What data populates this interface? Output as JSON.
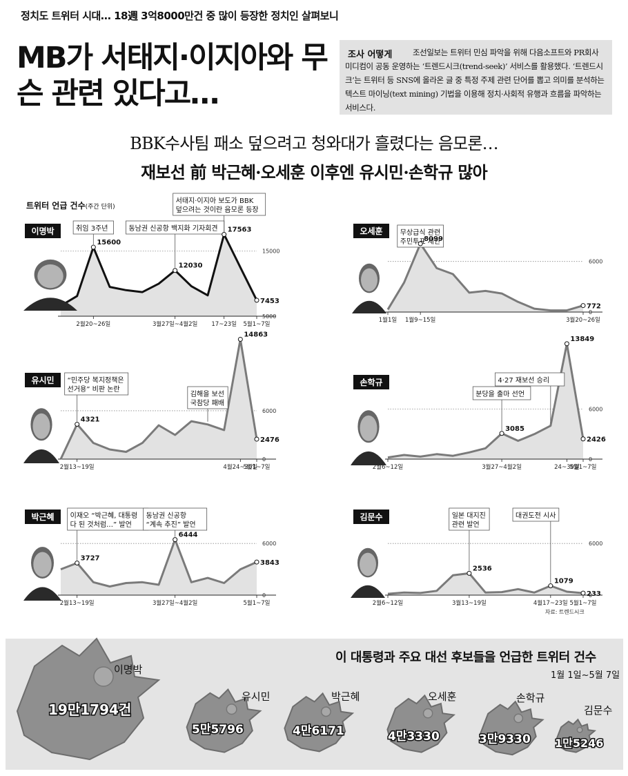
{
  "header": {
    "kicker": "정치도 트위터 시대… 18週 3억8000만건 중 많이 등장한 정치인 살펴보니",
    "headline": "MB가 서태지·이지아와 무슨 관련 있다고…",
    "survey_tag": "조사 어떻게",
    "survey_text": "조선일보는 트위터 민심 파악을 위해 다음소프트와 PR회사 미디컴이 공동 운영하는 ‘트렌드시크(trend-seek)’ 서비스를 활용했다. ‘트렌드시크’는 트위터 등 SNS에 올라온 글 중 특정 주제 관련 단어를 뽑고 의미를 분석하는 텍스트 마이닝(text mining) 기법을 이용해 정치·사회적 유행과 흐름을 파악하는 서비스다.",
    "subheadline_1": "BBK수사팀 패소 덮으려고 청와대가 흘렸다는 음모론…",
    "subheadline_2": "재보선 前 박근혜·오세훈 이후엔 유시민·손학규 많아"
  },
  "charts_title": "트위터 언급 건수",
  "charts_unit": "(주간 단위)",
  "source": "자료: 트렌드시크",
  "chart_data": [
    {
      "type": "area",
      "name": "이명박",
      "values": [
        6600,
        8100,
        15600,
        9500,
        9000,
        8700,
        10000,
        12030,
        9600,
        8200,
        17563,
        12500,
        7453
      ],
      "labeled": {
        "2": "15600",
        "7": "12030",
        "10": "17563",
        "12": "7453"
      },
      "x_ticks": [
        {
          "i": 2,
          "label": "2월20~26일"
        },
        {
          "i": 7,
          "label": "3월27일~4월2일"
        },
        {
          "i": 10,
          "label": "17~23일"
        },
        {
          "i": 12,
          "label": "5월1~7일"
        }
      ],
      "y_ticks": [
        {
          "v": 15000,
          "label": "15000"
        },
        {
          "v": 5000,
          "label": "5000"
        }
      ],
      "ylim": [
        5000,
        19000
      ],
      "annotations": [
        {
          "i": 2,
          "lines": [
            "취임 3주년"
          ]
        },
        {
          "i": 7,
          "lines": [
            "동남권 신공항 백지화 기자회견"
          ]
        },
        {
          "i": 10,
          "lines": [
            "서태지·이지아 보도가 BBK",
            "덮으려는 것이란 음모론 등장"
          ]
        }
      ]
    },
    {
      "type": "area",
      "name": "오세훈",
      "values": [
        300,
        3500,
        8099,
        5200,
        4500,
        2300,
        2500,
        2200,
        1200,
        400,
        200,
        200,
        772
      ],
      "labeled": {
        "2": "8099",
        "12": "772"
      },
      "x_ticks": [
        {
          "i": 0,
          "label": "1월1일"
        },
        {
          "i": 2,
          "label": "1월9~15일"
        },
        {
          "i": 12,
          "label": "3월20~26일"
        }
      ],
      "y_ticks": [
        {
          "v": 6000,
          "label": "6000"
        },
        {
          "v": 0,
          "label": "0"
        }
      ],
      "ylim": [
        0,
        9000
      ],
      "annotations": [
        {
          "i": 2,
          "lines": [
            "무상급식 관련",
            "주민투표 제안"
          ]
        }
      ]
    },
    {
      "type": "area",
      "name": "유시민",
      "values": [
        0,
        4321,
        2000,
        1200,
        900,
        2000,
        4200,
        3000,
        4700,
        4300,
        3600,
        14863,
        2476
      ],
      "labeled": {
        "1": "4321",
        "11": "14863",
        "12": "2476"
      },
      "x_ticks": [
        {
          "i": 1,
          "label": "2월13~19일"
        },
        {
          "i": 11,
          "label": "4월24~30일"
        },
        {
          "i": 12,
          "label": "5월1~7일"
        }
      ],
      "y_ticks": [
        {
          "v": 6000,
          "label": "6000"
        },
        {
          "v": 0,
          "label": "0"
        }
      ],
      "ylim": [
        0,
        15500
      ],
      "annotations": [
        {
          "i": 1,
          "lines": [
            "“민주당 복지정책은",
            "선거용” 비판 논란"
          ]
        },
        {
          "i": 9,
          "lines": [
            "김해을 보선",
            "국참당 패배"
          ]
        }
      ]
    },
    {
      "type": "area",
      "name": "손학규",
      "values": [
        200,
        500,
        300,
        600,
        400,
        800,
        1300,
        3085,
        2200,
        3000,
        4000,
        13849,
        2426
      ],
      "labeled": {
        "7": "3085",
        "11": "13849",
        "12": "2426"
      },
      "x_ticks": [
        {
          "i": 0,
          "label": "2월6~12일"
        },
        {
          "i": 7,
          "label": "3월27~4월2일"
        },
        {
          "i": 11,
          "label": "24~30일"
        },
        {
          "i": 12,
          "label": "5월1~7일"
        }
      ],
      "y_ticks": [
        {
          "v": 6000,
          "label": "6000"
        },
        {
          "v": 0,
          "label": "0"
        }
      ],
      "ylim": [
        0,
        15000
      ],
      "annotations": [
        {
          "i": 7,
          "lines": [
            "분당을 출마 선언"
          ]
        },
        {
          "i": 10,
          "lines": [
            "4·27 재보선 승리"
          ]
        }
      ]
    },
    {
      "type": "area",
      "name": "박근혜",
      "values": [
        3000,
        3727,
        1500,
        1000,
        1400,
        1500,
        1200,
        6444,
        1500,
        2000,
        1400,
        3000,
        3843
      ],
      "labeled": {
        "1": "3727",
        "7": "6444",
        "12": "3843"
      },
      "x_ticks": [
        {
          "i": 1,
          "label": "2월13~19일"
        },
        {
          "i": 7,
          "label": "3월27일~4월2일"
        },
        {
          "i": 12,
          "label": "5월1~7일"
        }
      ],
      "y_ticks": [
        {
          "v": 6000,
          "label": "6000"
        },
        {
          "v": 0,
          "label": "0"
        }
      ],
      "ylim": [
        0,
        8500
      ],
      "annotations": [
        {
          "i": 1,
          "lines": [
            "이재오 “박근혜, 대통령",
            "다 된 것처럼…” 발언"
          ]
        },
        {
          "i": 7,
          "lines": [
            "동남권 신공항",
            "“계속 추진” 발언"
          ]
        }
      ]
    },
    {
      "type": "area",
      "name": "김문수",
      "values": [
        150,
        300,
        250,
        500,
        2300,
        2536,
        300,
        350,
        700,
        300,
        1079,
        400,
        233
      ],
      "labeled": {
        "5": "2536",
        "10": "1079",
        "12": "233"
      },
      "x_ticks": [
        {
          "i": 0,
          "label": "2월6~12일"
        },
        {
          "i": 5,
          "label": "3월13~19일"
        },
        {
          "i": 10,
          "label": "4월17~23일"
        },
        {
          "i": 12,
          "label": "5월1~7일"
        }
      ],
      "y_ticks": [
        {
          "v": 6000,
          "label": "6000"
        },
        {
          "v": 0,
          "label": "0"
        }
      ],
      "ylim": [
        0,
        8500
      ],
      "annotations": [
        {
          "i": 5,
          "lines": [
            "일본 대지진",
            "관련 발언"
          ]
        },
        {
          "i": 10,
          "lines": [
            "대권도전 시사"
          ]
        }
      ]
    }
  ],
  "totals": {
    "title": "이 대통령과 주요 대선 후보들을 언급한 트위터 건수",
    "period": "1월 1일~5월 7일",
    "items": [
      {
        "name": "이명박",
        "count": "19만1794건",
        "value": 191794
      },
      {
        "name": "유시민",
        "count": "5만5796",
        "value": 55796
      },
      {
        "name": "박근혜",
        "count": "4만6171",
        "value": 46171
      },
      {
        "name": "오세훈",
        "count": "4만3330",
        "value": 43330
      },
      {
        "name": "손학규",
        "count": "3만9330",
        "value": 39330
      },
      {
        "name": "김문수",
        "count": "1만5246",
        "value": 15246
      }
    ]
  }
}
